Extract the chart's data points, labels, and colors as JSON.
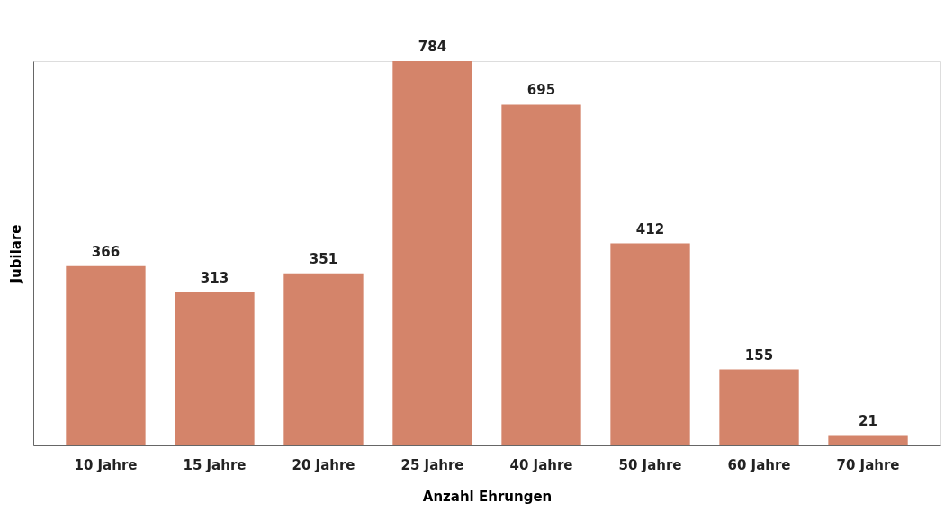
{
  "chart_data": {
    "type": "bar",
    "xlabel": "Anzahl Ehrungen",
    "ylabel": "Jubilare",
    "categories": [
      "10 Jahre",
      "15 Jahre",
      "20 Jahre",
      "25 Jahre",
      "40 Jahre",
      "50 Jahre",
      "60 Jahre",
      "70 Jahre"
    ],
    "values": [
      366,
      313,
      351,
      784,
      695,
      412,
      155,
      21
    ],
    "color": "#d4846a",
    "data_labels": true,
    "tick_labels": "x"
  }
}
